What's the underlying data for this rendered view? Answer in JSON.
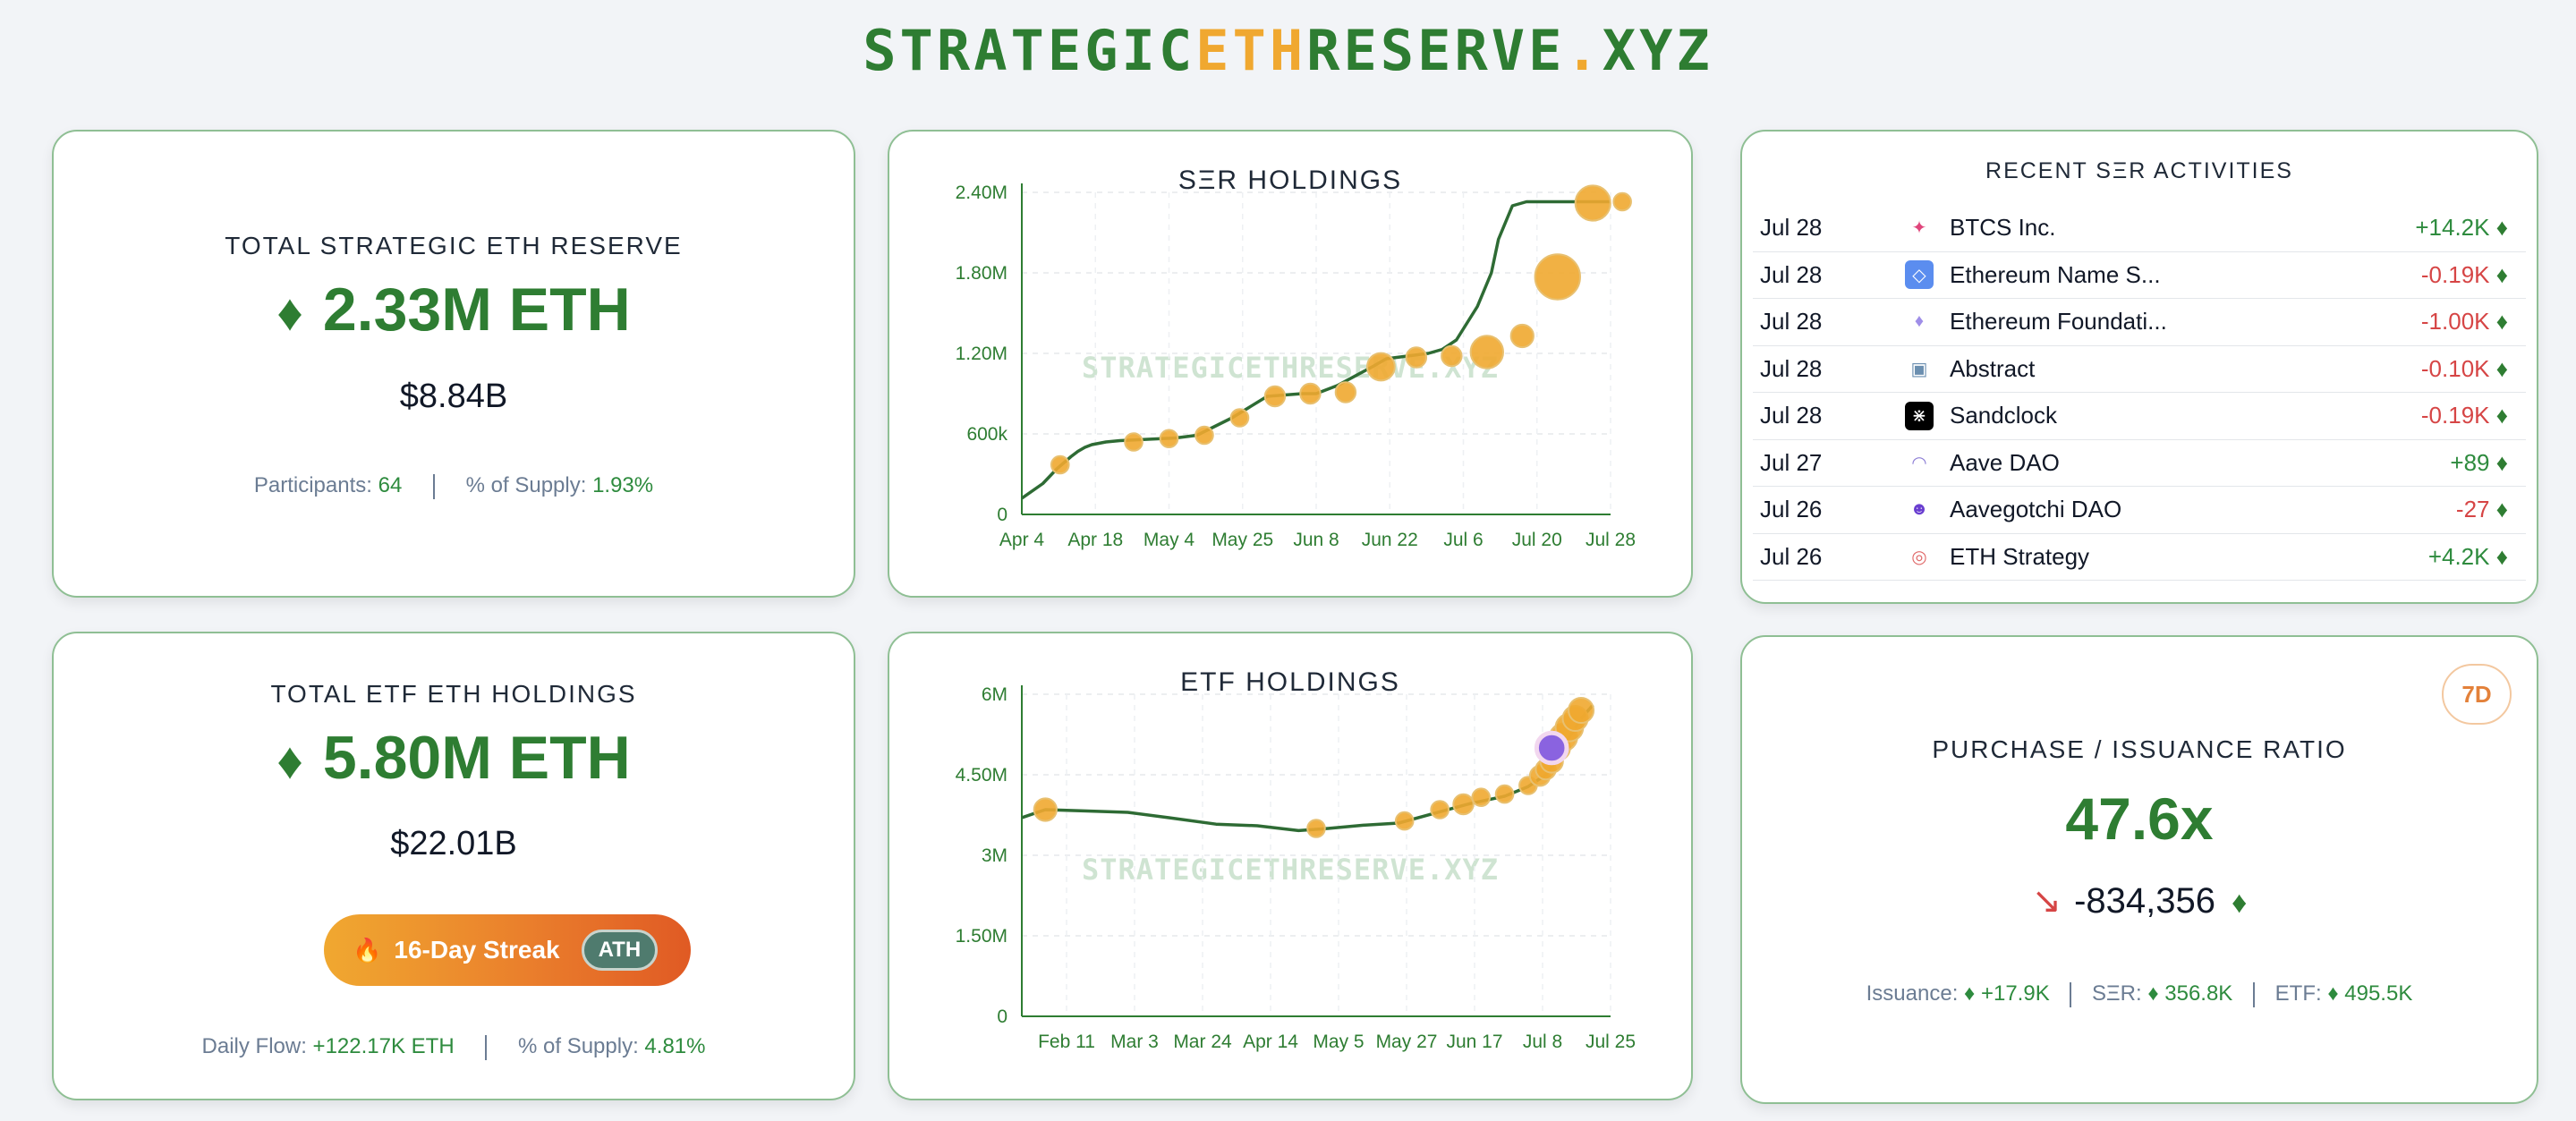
{
  "header": {
    "logo_a": "STRATEGIC",
    "logo_b": "ETH",
    "logo_c": "RESERVE",
    "logo_d": ".",
    "logo_e": "XYZ"
  },
  "reserve": {
    "title": "TOTAL STRATEGIC ETH RESERVE",
    "amount": "2.33M ETH",
    "usd": "$8.84B",
    "participants_label": "Participants:",
    "participants": "64",
    "supply_label": "% of Supply:",
    "supply": "1.93%"
  },
  "etf": {
    "title": "TOTAL ETF ETH HOLDINGS",
    "amount": "5.80M ETH",
    "usd": "$22.01B",
    "streak": "16-Day Streak",
    "ath": "ATH",
    "flow_label": "Daily Flow:",
    "flow": "+122.17K ETH",
    "supply_label": "% of Supply:",
    "supply": "4.81%"
  },
  "watermark": "STRATEGICETHRESERVE.XYZ",
  "ser_chart_title": "SΞR HOLDINGS",
  "etf_chart_title": "ETF HOLDINGS",
  "activities": {
    "title": "RECENT SΞR ACTIVITIES",
    "items": [
      {
        "date": "Jul 28",
        "name": "BTCS Inc.",
        "amount": "+14.2K",
        "negative": false,
        "icon": "btcs-logo-icon",
        "glyph": "✦",
        "bg": "#ffffff",
        "fg": "#e0457b"
      },
      {
        "date": "Jul 28",
        "name": "Ethereum Name S...",
        "amount": "-0.19K",
        "negative": true,
        "icon": "ens-logo-icon",
        "glyph": "◇",
        "bg": "#5b8def",
        "fg": "#ffffff"
      },
      {
        "date": "Jul 28",
        "name": "Ethereum Foundati...",
        "amount": "-1.00K",
        "negative": true,
        "icon": "ethereum-foundation-logo-icon",
        "glyph": "♦",
        "bg": "#ffffff",
        "fg": "#9f8ee8"
      },
      {
        "date": "Jul 28",
        "name": "Abstract",
        "amount": "-0.10K",
        "negative": true,
        "icon": "abstract-logo-icon",
        "glyph": "▣",
        "bg": "#ffffff",
        "fg": "#6b8fb0"
      },
      {
        "date": "Jul 28",
        "name": "Sandclock",
        "amount": "-0.19K",
        "negative": true,
        "icon": "sandclock-logo-icon",
        "glyph": "⋇",
        "bg": "#000000",
        "fg": "#ffffff"
      },
      {
        "date": "Jul 27",
        "name": "Aave DAO",
        "amount": "+89",
        "negative": false,
        "icon": "aave-logo-icon",
        "glyph": "◠",
        "bg": "#ffffff",
        "fg": "#8e7fd6"
      },
      {
        "date": "Jul 26",
        "name": "Aavegotchi DAO",
        "amount": "-27",
        "negative": true,
        "icon": "aavegotchi-logo-icon",
        "glyph": "☻",
        "bg": "#ffffff",
        "fg": "#6a3fd0"
      },
      {
        "date": "Jul 26",
        "name": "ETH Strategy",
        "amount": "+4.2K",
        "negative": false,
        "icon": "eth-strategy-logo-icon",
        "glyph": "◎",
        "bg": "#ffffff",
        "fg": "#e06a6a"
      }
    ]
  },
  "ratio": {
    "badge": "7D",
    "title": "PURCHASE / ISSUANCE RATIO",
    "value": "47.6x",
    "delta": "-834,356",
    "issuance_label": "Issuance:",
    "issuance": "+17.9K",
    "ser_label": "SΞR:",
    "ser": "356.8K",
    "etf_label": "ETF:",
    "etf": "495.5K"
  },
  "colors": {
    "accent": "#2e7d32",
    "orange": "#f0a830",
    "negative": "#d64545",
    "border": "#8fbf94"
  },
  "chart_data": [
    {
      "type": "line",
      "title": "SΞR HOLDINGS",
      "x_ticks": [
        "Apr 4",
        "Apr 18",
        "May 4",
        "May 25",
        "Jun 8",
        "Jun 22",
        "Jul 6",
        "Jul 20",
        "Jul 28"
      ],
      "y_ticks": [
        "0",
        "600k",
        "1.20M",
        "1.80M",
        "2.40M"
      ],
      "ylim": [
        0,
        2400000
      ],
      "series": [
        {
          "x": [
            0,
            3,
            5,
            7,
            8,
            9,
            10,
            11,
            12,
            13,
            14,
            16,
            18,
            22,
            25,
            30,
            35,
            40,
            42,
            45,
            50,
            52,
            55,
            58,
            60,
            62,
            65,
            67,
            68,
            70,
            72,
            75,
            78,
            80,
            82,
            83,
            84
          ],
          "y": [
            120000,
            230000,
            340000,
            430000,
            470000,
            500000,
            520000,
            530000,
            540000,
            545000,
            550000,
            555000,
            560000,
            570000,
            590000,
            720000,
            880000,
            900000,
            900000,
            960000,
            1100000,
            1160000,
            1180000,
            1200000,
            1230000,
            1300000,
            1550000,
            1800000,
            2050000,
            2300000,
            2330000,
            2330000,
            2330000,
            2330000,
            2330000,
            2330000,
            2330000
          ]
        }
      ],
      "events": [
        {
          "x": 6.5,
          "y": 370000,
          "r": 7
        },
        {
          "x": 19,
          "y": 540000,
          "r": 7
        },
        {
          "x": 25,
          "y": 565000,
          "r": 7
        },
        {
          "x": 31,
          "y": 590000,
          "r": 7
        },
        {
          "x": 37,
          "y": 720000,
          "r": 7
        },
        {
          "x": 43,
          "y": 880000,
          "r": 8
        },
        {
          "x": 49,
          "y": 900000,
          "r": 8
        },
        {
          "x": 55,
          "y": 910000,
          "r": 8
        },
        {
          "x": 61,
          "y": 1100000,
          "r": 11
        },
        {
          "x": 67,
          "y": 1170000,
          "r": 8
        },
        {
          "x": 73,
          "y": 1180000,
          "r": 8
        },
        {
          "x": 79,
          "y": 1210000,
          "r": 13
        },
        {
          "x": 85,
          "y": 1330000,
          "r": 9
        },
        {
          "x": 91,
          "y": 1770000,
          "r": 18
        },
        {
          "x": 97,
          "y": 2320000,
          "r": 14
        },
        {
          "x": 102,
          "y": 2330000,
          "r": 7
        }
      ]
    },
    {
      "type": "line",
      "title": "ETF HOLDINGS",
      "x_ticks": [
        "Feb 11",
        "Mar 3",
        "Mar 24",
        "Apr 14",
        "May 5",
        "May 27",
        "Jun 17",
        "Jul 8",
        "Jul 25"
      ],
      "y_ticks": [
        "0",
        "1.50M",
        "3M",
        "4.50M",
        "6M"
      ],
      "ylim": [
        0,
        6000000
      ],
      "events": [
        {
          "x": 4,
          "y": 3850000,
          "r": 9
        },
        {
          "x": 50,
          "y": 3500000,
          "r": 7
        },
        {
          "x": 65,
          "y": 3640000,
          "r": 7
        },
        {
          "x": 71,
          "y": 3850000,
          "r": 7
        },
        {
          "x": 75,
          "y": 3950000,
          "r": 8
        },
        {
          "x": 78,
          "y": 4080000,
          "r": 7
        },
        {
          "x": 82,
          "y": 4140000,
          "r": 7
        },
        {
          "x": 86,
          "y": 4300000,
          "r": 7
        },
        {
          "x": 88,
          "y": 4480000,
          "r": 8
        },
        {
          "x": 89,
          "y": 4600000,
          "r": 8
        },
        {
          "x": 90,
          "y": 4750000,
          "r": 9
        },
        {
          "x": 91,
          "y": 5000000,
          "r": 10
        },
        {
          "x": 92,
          "y": 5200000,
          "r": 11
        },
        {
          "x": 93,
          "y": 5380000,
          "r": 11
        },
        {
          "x": 94,
          "y": 5550000,
          "r": 10
        },
        {
          "x": 95,
          "y": 5700000,
          "r": 10
        }
      ],
      "highlight": {
        "x": 90,
        "y": 5000000,
        "r": 12,
        "color": "#8a63e0"
      }
    }
  ]
}
